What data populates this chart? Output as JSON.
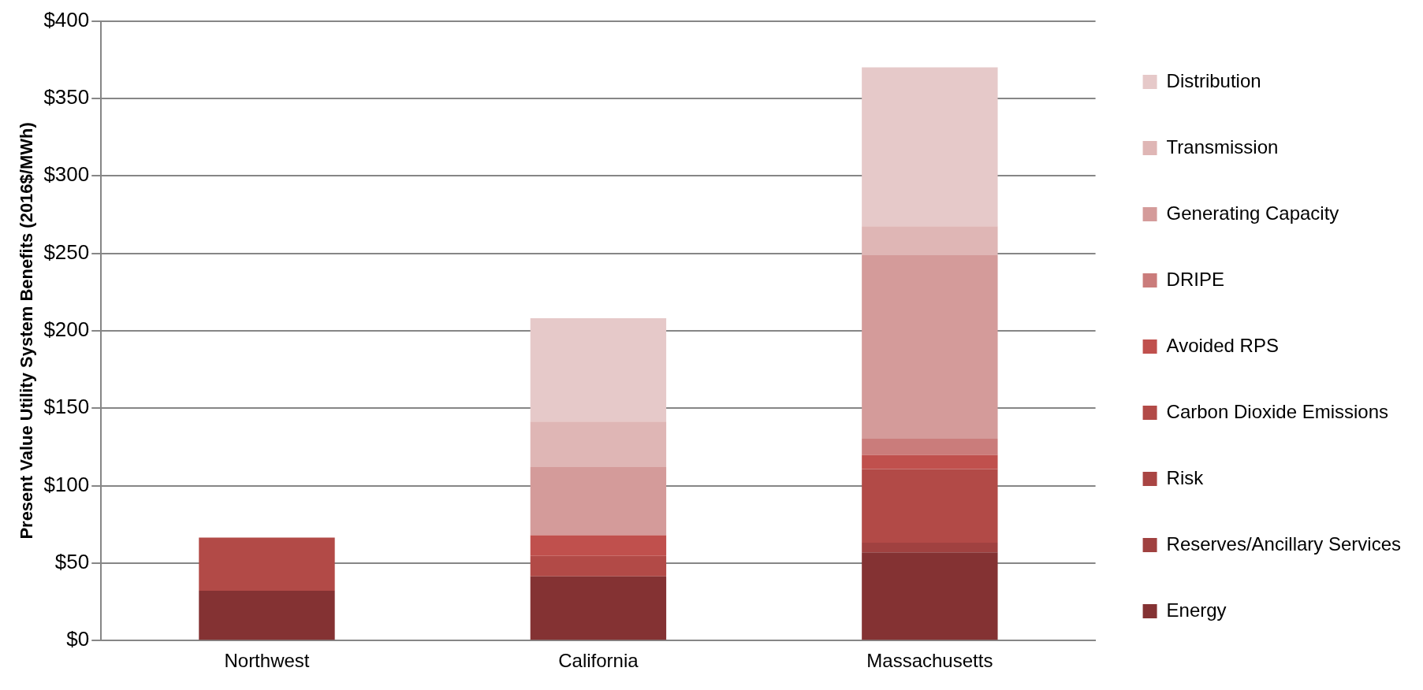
{
  "chart_data": {
    "type": "bar",
    "ylabel": "Present Value Utility System Benefits (2016$/MWh)",
    "categories": [
      "Northwest",
      "California",
      "Massachusetts"
    ],
    "stacked": true,
    "series": [
      {
        "name": "Energy",
        "color": "#843233",
        "values": [
          32.2,
          41.4,
          56.9
        ]
      },
      {
        "name": "Reserves/Ancillary Services",
        "color": "#a04140",
        "values": [
          0,
          0,
          6.3
        ]
      },
      {
        "name": "Risk",
        "color": "#a94543",
        "values": [
          0,
          0,
          0
        ]
      },
      {
        "name": "Carbon Dioxide Emissions",
        "color": "#b24a47",
        "values": [
          34.2,
          13.3,
          47.5
        ]
      },
      {
        "name": "Avoided RPS",
        "color": "#c0504d",
        "values": [
          0,
          13.3,
          9.2
        ]
      },
      {
        "name": "DRIPE",
        "color": "#ca7c7b",
        "values": [
          0,
          0,
          10.4
        ]
      },
      {
        "name": "Generating Capacity",
        "color": "#d49b9a",
        "values": [
          0,
          44,
          118.5
        ]
      },
      {
        "name": "Transmission",
        "color": "#dfb6b5",
        "values": [
          0,
          29.3,
          18.7
        ]
      },
      {
        "name": "Distribution",
        "color": "#e6c9c9",
        "values": [
          0,
          66.8,
          102.6
        ]
      }
    ],
    "ylim": [
      0,
      400
    ],
    "yticks": [
      {
        "value": 0,
        "label": "$0"
      },
      {
        "value": 50,
        "label": "$50"
      },
      {
        "value": 100,
        "label": "$100"
      },
      {
        "value": 150,
        "label": "$150"
      },
      {
        "value": 200,
        "label": "$200"
      },
      {
        "value": 250,
        "label": "$250"
      },
      {
        "value": 300,
        "label": "$300"
      },
      {
        "value": 350,
        "label": "$350"
      },
      {
        "value": 400,
        "label": "$400"
      }
    ],
    "grid": "y",
    "legend": "right"
  }
}
